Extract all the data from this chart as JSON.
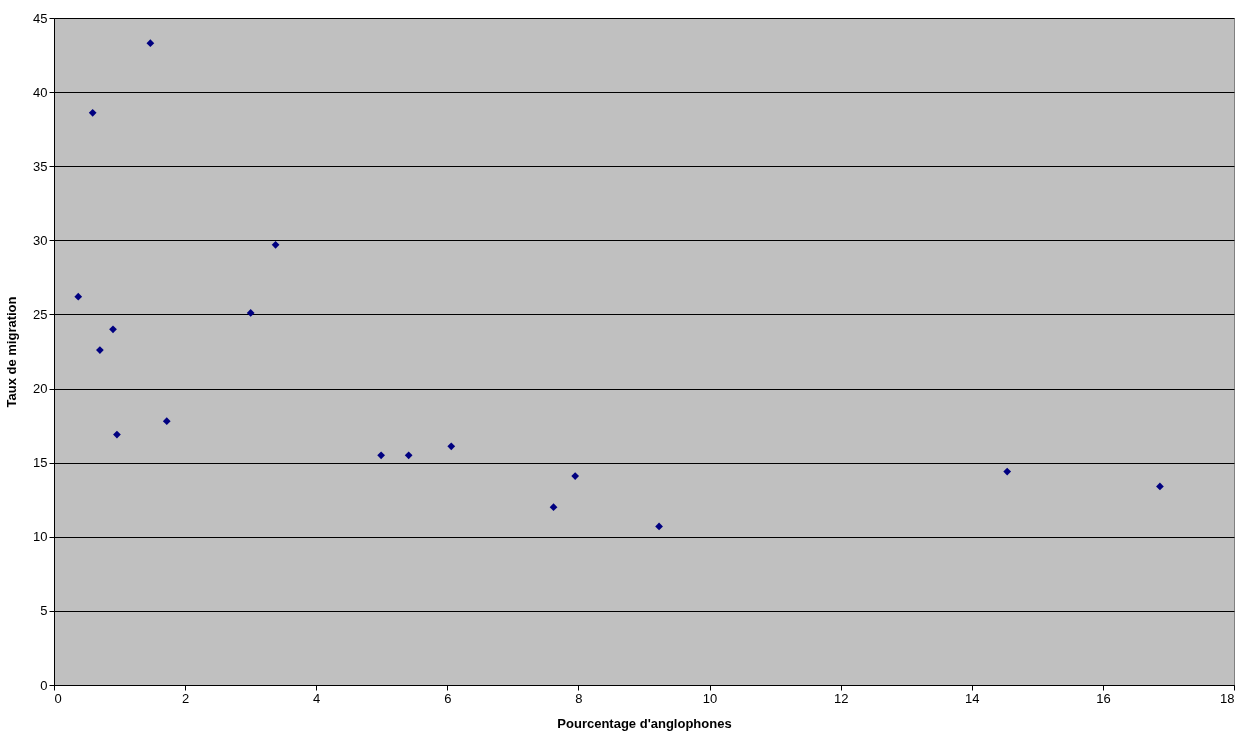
{
  "chart_data": {
    "type": "scatter",
    "xlabel": "Pourcentage d'anglophones",
    "ylabel": "Taux de migration",
    "x": [
      0.37,
      0.59,
      0.7,
      0.9,
      0.96,
      1.47,
      1.72,
      3.0,
      3.38,
      4.99,
      5.41,
      6.06,
      7.62,
      7.95,
      9.23,
      14.54,
      16.87
    ],
    "series": [
      {
        "color": "#000080",
        "values": [
          26.2,
          38.6,
          22.6,
          24.0,
          16.9,
          43.3,
          17.8,
          25.1,
          29.7,
          15.5,
          15.5,
          16.1,
          12.0,
          14.1,
          10.7,
          14.4,
          13.4
        ]
      }
    ],
    "xlim": [
      0,
      18
    ],
    "xticks": [
      0,
      2,
      4,
      6,
      8,
      10,
      12,
      14,
      16,
      18
    ],
    "ylim": [
      0,
      45
    ],
    "yticks": [
      0,
      5,
      10,
      15,
      20,
      25,
      30,
      35,
      40,
      45
    ],
    "grid": "y",
    "marker": "diamond"
  }
}
